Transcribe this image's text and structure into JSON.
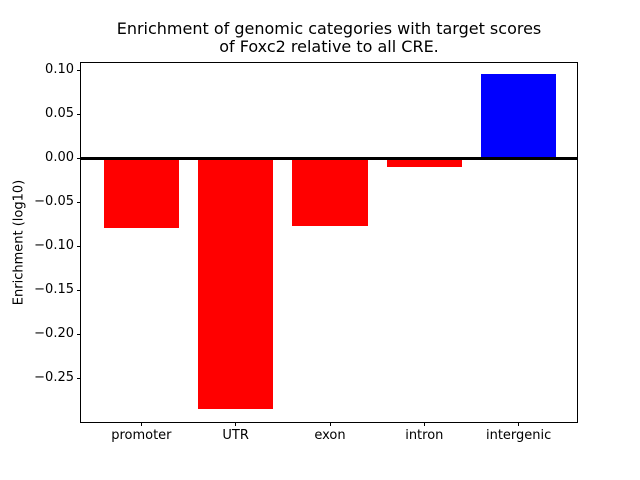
{
  "figure": {
    "title_line1": "Enrichment of genomic categories with target scores",
    "title_line2": "of Foxc2 relative to all CRE."
  },
  "chart_data": {
    "type": "bar",
    "title": "Enrichment of genomic categories with target scores\nof Foxc2 relative to all CRE.",
    "xlabel": "",
    "ylabel": "Enrichment (log10)",
    "categories": [
      "promoter",
      "UTR",
      "exon",
      "intron",
      "intergenic"
    ],
    "values": [
      -0.079,
      -0.285,
      -0.077,
      -0.01,
      0.095
    ],
    "bar_colors": [
      "#ff0000",
      "#ff0000",
      "#ff0000",
      "#ff0000",
      "#0000ff"
    ],
    "negative_color": "#ff0000",
    "positive_color": "#0000ff",
    "ylim": [
      -0.302,
      0.108
    ],
    "yticks": [
      0.1,
      0.05,
      0.0,
      -0.05,
      -0.1,
      -0.15,
      -0.2,
      -0.25
    ],
    "ytick_labels": [
      "0.10",
      "0.05",
      "0.00",
      "−0.05",
      "−0.10",
      "−0.15",
      "−0.20",
      "−0.25"
    ],
    "xlim": [
      -0.64,
      4.64
    ],
    "bar_width": 0.8,
    "zero_line": true,
    "grid": false,
    "legend_position": "none"
  }
}
